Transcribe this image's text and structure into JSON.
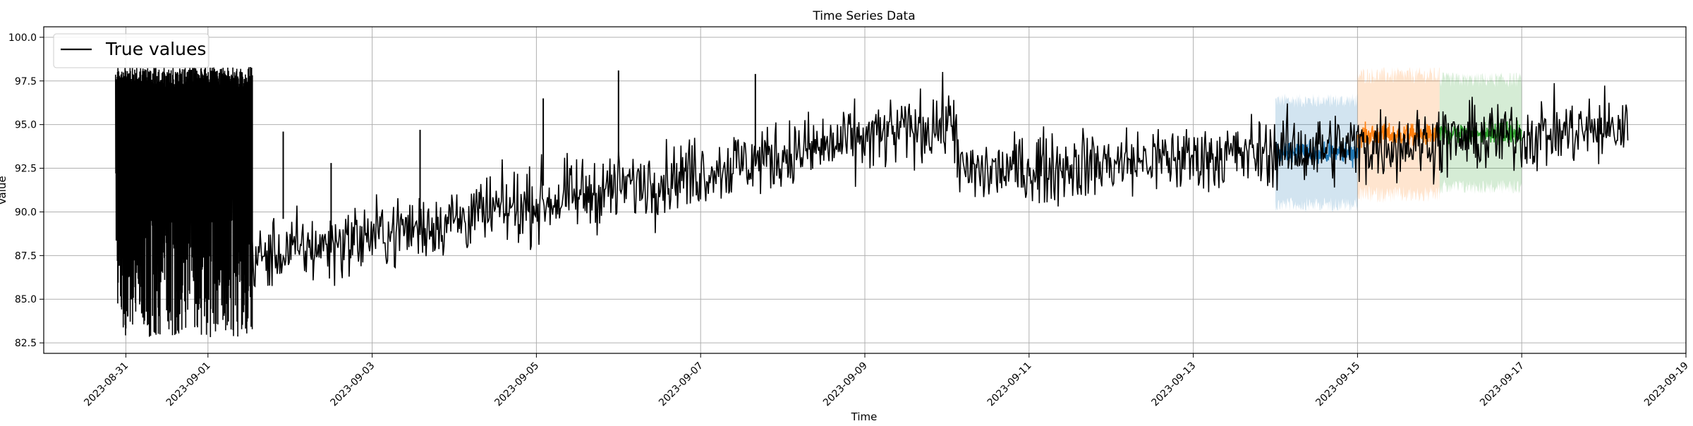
{
  "chart_data": {
    "type": "line",
    "title": "Time Series Data",
    "xlabel": "Time",
    "ylabel": "Value",
    "xlim": [
      "2023-08-30",
      "2023-09-19"
    ],
    "ylim": [
      81.9,
      100.6
    ],
    "x_ticks": [
      "2023-08-31",
      "2023-09-01",
      "2023-09-03",
      "2023-09-05",
      "2023-09-07",
      "2023-09-09",
      "2023-09-11",
      "2023-09-13",
      "2023-09-15",
      "2023-09-17",
      "2023-09-19"
    ],
    "y_ticks": [
      "82.5",
      "85.0",
      "87.5",
      "90.0",
      "92.5",
      "95.0",
      "97.5",
      "100.0"
    ],
    "grid": true,
    "legend": {
      "position": "top-left",
      "entries": [
        "True values"
      ]
    },
    "series": [
      {
        "name": "True values",
        "color": "#000000",
        "segments": [
          {
            "start": "2023-08-30 21:00",
            "end": "2023-09-01 13:00",
            "low": 82.8,
            "high": 98.3,
            "pattern": "oscillating"
          },
          {
            "start": "2023-09-01 13:00",
            "end": "2023-09-10 03:00",
            "trend_start": 87.3,
            "trend_end": 95.2,
            "noise": 1.0
          },
          {
            "start": "2023-09-10 03:00",
            "end": "2023-09-18 07:00",
            "trend_start": 92.2,
            "trend_end": 94.8,
            "noise": 1.0
          }
        ],
        "spikes": [
          {
            "x": "2023-09-01 22:00",
            "y": 94.6
          },
          {
            "x": "2023-09-02 12:00",
            "y": 92.8
          },
          {
            "x": "2023-09-03 14:00",
            "y": 94.7
          },
          {
            "x": "2023-09-05 02:00",
            "y": 96.5
          },
          {
            "x": "2023-09-06 00:00",
            "y": 98.1
          },
          {
            "x": "2023-09-07 16:00",
            "y": 97.9
          }
        ]
      },
      {
        "name": "",
        "color": "#1f77b4",
        "x_start": "2023-09-14 00:00",
        "x_end": "2023-09-15 00:00",
        "center": 93.4,
        "noise": 0.3,
        "band": [
          89.8,
          96.6
        ]
      },
      {
        "name": "",
        "color": "#ff7f0e",
        "x_start": "2023-09-15 00:00",
        "x_end": "2023-09-16 00:00",
        "center": 94.4,
        "noise": 0.3,
        "band": [
          90.5,
          98.3
        ]
      },
      {
        "name": "",
        "color": "#2ca02c",
        "x_start": "2023-09-16 00:00",
        "x_end": "2023-09-17 00:00",
        "center": 94.5,
        "noise": 0.3,
        "band": [
          91.0,
          98.0
        ]
      }
    ]
  }
}
